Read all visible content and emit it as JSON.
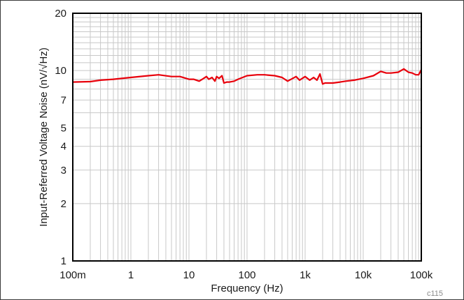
{
  "chart_data": {
    "type": "line",
    "xlabel": "Frequency (Hz)",
    "ylabel": "Input-Referred Voltage Noise (nV/√Hz)",
    "x_scale": "log",
    "y_scale": "log",
    "xlim": [
      0.1,
      100000
    ],
    "ylim": [
      1,
      20
    ],
    "x_ticks": [
      {
        "value": 0.1,
        "label": "100m"
      },
      {
        "value": 1,
        "label": "1"
      },
      {
        "value": 10,
        "label": "10"
      },
      {
        "value": 100,
        "label": "100"
      },
      {
        "value": 1000,
        "label": "1k"
      },
      {
        "value": 10000,
        "label": "10k"
      },
      {
        "value": 100000,
        "label": "100k"
      }
    ],
    "y_ticks": [
      {
        "value": 1,
        "label": "1"
      },
      {
        "value": 2,
        "label": "2"
      },
      {
        "value": 3,
        "label": "3"
      },
      {
        "value": 4,
        "label": "4"
      },
      {
        "value": 5,
        "label": "5"
      },
      {
        "value": 7,
        "label": "7"
      },
      {
        "value": 10,
        "label": "10"
      },
      {
        "value": 20,
        "label": "20"
      }
    ],
    "grid": true,
    "series": [
      {
        "color": "#e8000b",
        "x": [
          0.1,
          0.2,
          0.3,
          0.5,
          1,
          2,
          3,
          5,
          7,
          10,
          12,
          15,
          17,
          20,
          22,
          25,
          28,
          30,
          33,
          37,
          40,
          45,
          50,
          60,
          70,
          100,
          150,
          200,
          300,
          400,
          500,
          700,
          800,
          1000,
          1200,
          1400,
          1600,
          1800,
          2000,
          2200,
          2500,
          3000,
          4000,
          5000,
          7000,
          10000,
          15000,
          20000,
          25000,
          30000,
          40000,
          50000,
          60000,
          70000,
          80000,
          90000,
          100000
        ],
        "y": [
          8.7,
          8.75,
          8.9,
          9.0,
          9.2,
          9.4,
          9.5,
          9.3,
          9.3,
          9.0,
          9.0,
          8.8,
          9.0,
          9.3,
          9.0,
          9.2,
          8.8,
          9.3,
          9.1,
          9.4,
          8.6,
          8.7,
          8.7,
          8.8,
          9.0,
          9.4,
          9.5,
          9.5,
          9.4,
          9.2,
          8.8,
          9.3,
          8.9,
          9.3,
          8.9,
          9.2,
          8.9,
          9.6,
          8.5,
          8.6,
          8.6,
          8.6,
          8.7,
          8.8,
          8.9,
          9.1,
          9.4,
          9.9,
          9.7,
          9.7,
          9.8,
          10.2,
          9.8,
          9.7,
          9.5,
          9.5,
          10.1
        ]
      }
    ]
  },
  "figure_code": "c115"
}
